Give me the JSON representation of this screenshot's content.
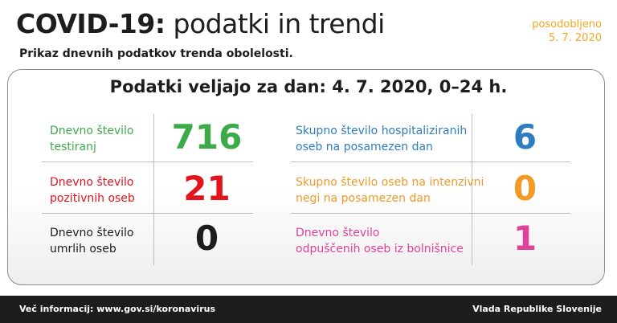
{
  "header": {
    "title_bold": "COVID-19:",
    "title_rest": "podatki in trendi",
    "subtitle": "Prikaz dnevnih podatkov trenda obolelosti.",
    "updated_line1": "posodobljeno",
    "updated_line2": "5. 7. 2020"
  },
  "card": {
    "title": "Podatki veljajo za dan: 4. 7. 2020, 0–24 h."
  },
  "stats": {
    "tested": {
      "label1": "Dnevno število",
      "label2": "testiranj",
      "value": "716",
      "color": "#3daa4a"
    },
    "positive": {
      "label1": "Dnevno število",
      "label2": "pozitivnih oseb",
      "value": "21",
      "color": "#e3131b"
    },
    "deaths": {
      "label1": "Dnevno število",
      "label2": "umrlih oseb",
      "value": "0",
      "color": "#1d1d1b"
    },
    "hospitalized": {
      "label1": "Skupno število hospitaliziranih",
      "label2": "oseb na posamezen dan",
      "value": "6",
      "color": "#2e7dc0"
    },
    "icu": {
      "label1": "Skupno število oseb na intenzivni",
      "label2": "negi na posamezen dan",
      "value": "0",
      "color": "#f29a26"
    },
    "discharged": {
      "label1": "Dnevno število",
      "label2": "odpuščenih oseb iz bolnišnice",
      "value": "1",
      "color": "#e0429a"
    }
  },
  "footer": {
    "left": "Več informacij: www.gov.si/koronavirus",
    "right": "Vlada Republike Slovenije"
  }
}
